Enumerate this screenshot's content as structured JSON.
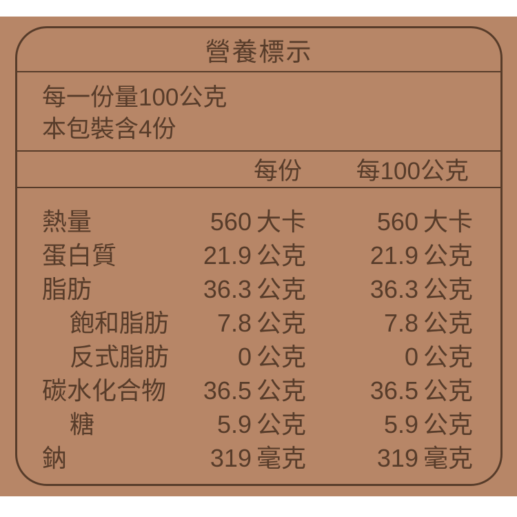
{
  "colors": {
    "page_background": "#ffffff",
    "label_background": "#b78667",
    "ink": "#573c2a"
  },
  "label": {
    "title": "營養標示",
    "serving_size": "每一份量100公克",
    "servings_per_package": "本包裝含4份"
  },
  "table": {
    "columns": [
      "每份",
      "每100公克"
    ],
    "rows": [
      {
        "label": "熱量",
        "per_serving": {
          "value": "560",
          "unit": "大卡"
        },
        "per_100g": {
          "value": "560",
          "unit": "大卡"
        }
      },
      {
        "label": "蛋白質",
        "per_serving": {
          "value": "21.9",
          "unit": "公克"
        },
        "per_100g": {
          "value": "21.9",
          "unit": "公克"
        }
      },
      {
        "label": "脂肪",
        "per_serving": {
          "value": "36.3",
          "unit": "公克"
        },
        "per_100g": {
          "value": "36.3",
          "unit": "公克"
        }
      },
      {
        "label": "飽和脂肪",
        "per_serving": {
          "value": "7.8",
          "unit": "公克"
        },
        "per_100g": {
          "value": "7.8",
          "unit": "公克"
        }
      },
      {
        "label": "反式脂肪",
        "per_serving": {
          "value": "0",
          "unit": "公克"
        },
        "per_100g": {
          "value": "0",
          "unit": "公克"
        }
      },
      {
        "label": "碳水化合物",
        "per_serving": {
          "value": "36.5",
          "unit": "公克"
        },
        "per_100g": {
          "value": "36.5",
          "unit": "公克"
        }
      },
      {
        "label": "糖",
        "per_serving": {
          "value": "5.9",
          "unit": "公克"
        },
        "per_100g": {
          "value": "5.9",
          "unit": "公克"
        }
      },
      {
        "label": "鈉",
        "per_serving": {
          "value": "319",
          "unit": "毫克"
        },
        "per_100g": {
          "value": "319",
          "unit": "毫克"
        }
      }
    ]
  }
}
